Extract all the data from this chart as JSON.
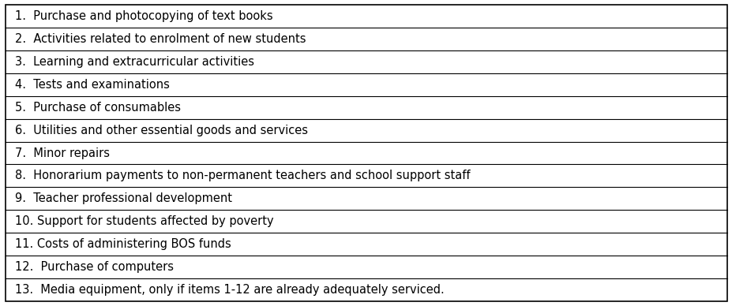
{
  "rows": [
    "1.  Purchase and photocopying of text books",
    "2.  Activities related to enrolment of new students",
    "3.  Learning and extracurricular activities",
    "4.  Tests and examinations",
    "5.  Purchase of consumables",
    "6.  Utilities and other essential goods and services",
    "7.  Minor repairs",
    "8.  Honorarium payments to non-permanent teachers and school support staff",
    "9.  Teacher professional development",
    "10. Support for students affected by poverty",
    "11. Costs of administering BOS funds",
    "12.  Purchase of computers",
    "13.  Media equipment, only if items 1-12 are already adequately serviced."
  ],
  "bg_color": "#ffffff",
  "border_color": "#000000",
  "text_color": "#000000",
  "font_size": 10.5,
  "fig_width": 9.28,
  "fig_height": 3.88
}
